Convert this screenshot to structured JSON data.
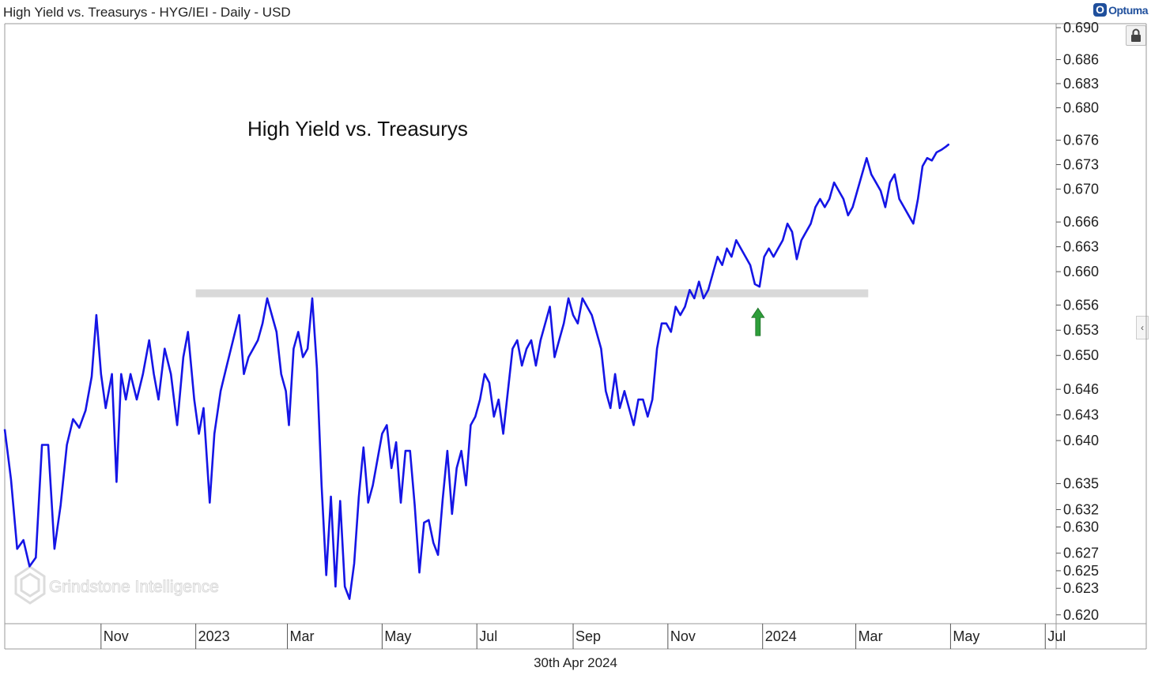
{
  "header": {
    "title": "High Yield vs. Treasurys - HYG/IEI - Daily - USD",
    "brand": "Optuma",
    "brand_icon": "O"
  },
  "footer": {
    "date": "30th Apr 2024"
  },
  "icons": {
    "lock": "lock-icon",
    "collapse": "chevron-left-icon"
  },
  "colors": {
    "series": "#1515e6",
    "band": "#d9d9d9",
    "arrow": "#2e9e3a"
  },
  "chart_data": {
    "type": "line",
    "title": "High Yield vs. Treasurys",
    "watermark": "Grindstone Intelligence",
    "xlabel": "",
    "ylabel": "",
    "scale": "log",
    "ylim": [
      0.619,
      0.6905
    ],
    "xlim": [
      "2022-08-31",
      "2024-07-08"
    ],
    "x_tick_labels": [
      {
        "date": "2022-11-01",
        "label": "Nov"
      },
      {
        "date": "2023-01-01",
        "label": "2023"
      },
      {
        "date": "2023-03-01",
        "label": "Mar"
      },
      {
        "date": "2023-05-01",
        "label": "May"
      },
      {
        "date": "2023-07-01",
        "label": "Jul"
      },
      {
        "date": "2023-09-01",
        "label": "Sep"
      },
      {
        "date": "2023-11-01",
        "label": "Nov"
      },
      {
        "date": "2024-01-01",
        "label": "2024"
      },
      {
        "date": "2024-03-01",
        "label": "Mar"
      },
      {
        "date": "2024-05-01",
        "label": "May"
      },
      {
        "date": "2024-07-01",
        "label": "Jul"
      }
    ],
    "y_ticks": [
      0.69,
      0.686,
      0.683,
      0.68,
      0.676,
      0.673,
      0.67,
      0.666,
      0.663,
      0.66,
      0.656,
      0.653,
      0.65,
      0.646,
      0.643,
      0.64,
      0.635,
      0.632,
      0.63,
      0.627,
      0.625,
      0.623,
      0.62
    ],
    "y_tick_labels": [
      "0.690",
      "0.686",
      "0.683",
      "0.680",
      "0.676",
      "0.673",
      "0.670",
      "0.666",
      "0.663",
      "0.660",
      "0.656",
      "0.653",
      "0.650",
      "0.646",
      "0.643",
      "0.640",
      "0.635",
      "0.632",
      "0.630",
      "0.627",
      "0.625",
      "0.623",
      "0.620"
    ],
    "resistance_band": {
      "level": 0.6574,
      "from": "2023-01-01",
      "to": "2024-03-09"
    },
    "arrow": {
      "date": "2023-12-29",
      "value": 0.6545,
      "direction": "up"
    },
    "series": [
      {
        "color": "#1515e6",
        "points": [
          [
            "2022-08-31",
            0.6413
          ],
          [
            "2022-09-04",
            0.6355
          ],
          [
            "2022-09-08",
            0.6275
          ],
          [
            "2022-09-12",
            0.6285
          ],
          [
            "2022-09-16",
            0.6255
          ],
          [
            "2022-09-20",
            0.6265
          ],
          [
            "2022-09-24",
            0.6395
          ],
          [
            "2022-09-28",
            0.6395
          ],
          [
            "2022-10-02",
            0.6275
          ],
          [
            "2022-10-06",
            0.6325
          ],
          [
            "2022-10-10",
            0.6395
          ],
          [
            "2022-10-14",
            0.6425
          ],
          [
            "2022-10-18",
            0.6415
          ],
          [
            "2022-10-22",
            0.6435
          ],
          [
            "2022-10-26",
            0.6475
          ],
          [
            "2022-10-29",
            0.6548
          ],
          [
            "2022-11-01",
            0.6478
          ],
          [
            "2022-11-04",
            0.6438
          ],
          [
            "2022-11-08",
            0.6478
          ],
          [
            "2022-11-11",
            0.6352
          ],
          [
            "2022-11-14",
            0.6478
          ],
          [
            "2022-11-17",
            0.6448
          ],
          [
            "2022-11-20",
            0.6478
          ],
          [
            "2022-11-24",
            0.6448
          ],
          [
            "2022-11-28",
            0.6478
          ],
          [
            "2022-12-02",
            0.6518
          ],
          [
            "2022-12-05",
            0.6478
          ],
          [
            "2022-12-08",
            0.6448
          ],
          [
            "2022-12-12",
            0.6508
          ],
          [
            "2022-12-16",
            0.6478
          ],
          [
            "2022-12-20",
            0.6418
          ],
          [
            "2022-12-24",
            0.6498
          ],
          [
            "2022-12-27",
            0.6528
          ],
          [
            "2022-12-31",
            0.6448
          ],
          [
            "2023-01-03",
            0.6408
          ],
          [
            "2023-01-06",
            0.6438
          ],
          [
            "2023-01-10",
            0.6328
          ],
          [
            "2023-01-13",
            0.6408
          ],
          [
            "2023-01-17",
            0.6458
          ],
          [
            "2023-01-21",
            0.6488
          ],
          [
            "2023-01-25",
            0.6518
          ],
          [
            "2023-01-29",
            0.6548
          ],
          [
            "2023-02-01",
            0.6478
          ],
          [
            "2023-02-04",
            0.6498
          ],
          [
            "2023-02-07",
            0.6508
          ],
          [
            "2023-02-10",
            0.6518
          ],
          [
            "2023-02-13",
            0.6538
          ],
          [
            "2023-02-16",
            0.6568
          ],
          [
            "2023-02-19",
            0.6548
          ],
          [
            "2023-02-22",
            0.6528
          ],
          [
            "2023-02-25",
            0.6478
          ],
          [
            "2023-02-28",
            0.6458
          ],
          [
            "2023-03-02",
            0.6418
          ],
          [
            "2023-03-05",
            0.6508
          ],
          [
            "2023-03-08",
            0.6528
          ],
          [
            "2023-03-11",
            0.6498
          ],
          [
            "2023-03-14",
            0.6508
          ],
          [
            "2023-03-17",
            0.6568
          ],
          [
            "2023-03-20",
            0.6485
          ],
          [
            "2023-03-23",
            0.6348
          ],
          [
            "2023-03-26",
            0.6245
          ],
          [
            "2023-03-29",
            0.6335
          ],
          [
            "2023-04-01",
            0.6232
          ],
          [
            "2023-04-04",
            0.633
          ],
          [
            "2023-04-07",
            0.6232
          ],
          [
            "2023-04-10",
            0.6218
          ],
          [
            "2023-04-13",
            0.6258
          ],
          [
            "2023-04-16",
            0.6335
          ],
          [
            "2023-04-19",
            0.6392
          ],
          [
            "2023-04-22",
            0.6328
          ],
          [
            "2023-04-25",
            0.6348
          ],
          [
            "2023-04-28",
            0.6378
          ],
          [
            "2023-05-01",
            0.6408
          ],
          [
            "2023-05-04",
            0.6418
          ],
          [
            "2023-05-07",
            0.6368
          ],
          [
            "2023-05-10",
            0.6398
          ],
          [
            "2023-05-13",
            0.6328
          ],
          [
            "2023-05-16",
            0.6388
          ],
          [
            "2023-05-19",
            0.6388
          ],
          [
            "2023-05-22",
            0.6325
          ],
          [
            "2023-05-25",
            0.6248
          ],
          [
            "2023-05-28",
            0.6305
          ],
          [
            "2023-05-31",
            0.6308
          ],
          [
            "2023-06-03",
            0.6282
          ],
          [
            "2023-06-06",
            0.6268
          ],
          [
            "2023-06-09",
            0.6332
          ],
          [
            "2023-06-12",
            0.6388
          ],
          [
            "2023-06-15",
            0.6315
          ],
          [
            "2023-06-18",
            0.6368
          ],
          [
            "2023-06-21",
            0.6388
          ],
          [
            "2023-06-24",
            0.6348
          ],
          [
            "2023-06-27",
            0.6418
          ],
          [
            "2023-06-30",
            0.6428
          ],
          [
            "2023-07-03",
            0.6448
          ],
          [
            "2023-07-06",
            0.6478
          ],
          [
            "2023-07-09",
            0.6468
          ],
          [
            "2023-07-12",
            0.6428
          ],
          [
            "2023-07-15",
            0.6448
          ],
          [
            "2023-07-18",
            0.6408
          ],
          [
            "2023-07-21",
            0.6458
          ],
          [
            "2023-07-24",
            0.6508
          ],
          [
            "2023-07-27",
            0.6518
          ],
          [
            "2023-07-30",
            0.6488
          ],
          [
            "2023-08-02",
            0.6508
          ],
          [
            "2023-08-05",
            0.6518
          ],
          [
            "2023-08-08",
            0.6488
          ],
          [
            "2023-08-11",
            0.6518
          ],
          [
            "2023-08-14",
            0.6538
          ],
          [
            "2023-08-17",
            0.6558
          ],
          [
            "2023-08-20",
            0.6498
          ],
          [
            "2023-08-23",
            0.6518
          ],
          [
            "2023-08-26",
            0.6538
          ],
          [
            "2023-08-29",
            0.6568
          ],
          [
            "2023-09-01",
            0.6548
          ],
          [
            "2023-09-04",
            0.6538
          ],
          [
            "2023-09-07",
            0.6568
          ],
          [
            "2023-09-10",
            0.6558
          ],
          [
            "2023-09-13",
            0.6548
          ],
          [
            "2023-09-16",
            0.6528
          ],
          [
            "2023-09-19",
            0.6508
          ],
          [
            "2023-09-22",
            0.6458
          ],
          [
            "2023-09-25",
            0.6438
          ],
          [
            "2023-09-28",
            0.6478
          ],
          [
            "2023-10-01",
            0.6438
          ],
          [
            "2023-10-04",
            0.6458
          ],
          [
            "2023-10-07",
            0.6438
          ],
          [
            "2023-10-10",
            0.6418
          ],
          [
            "2023-10-13",
            0.6448
          ],
          [
            "2023-10-16",
            0.6448
          ],
          [
            "2023-10-19",
            0.6428
          ],
          [
            "2023-10-22",
            0.6448
          ],
          [
            "2023-10-25",
            0.6508
          ],
          [
            "2023-10-28",
            0.6538
          ],
          [
            "2023-10-31",
            0.6538
          ],
          [
            "2023-11-03",
            0.6528
          ],
          [
            "2023-11-06",
            0.6558
          ],
          [
            "2023-11-09",
            0.6548
          ],
          [
            "2023-11-12",
            0.6558
          ],
          [
            "2023-11-15",
            0.6578
          ],
          [
            "2023-11-18",
            0.6568
          ],
          [
            "2023-11-21",
            0.6588
          ],
          [
            "2023-11-24",
            0.6568
          ],
          [
            "2023-11-27",
            0.6578
          ],
          [
            "2023-11-30",
            0.6598
          ],
          [
            "2023-12-03",
            0.6618
          ],
          [
            "2023-12-06",
            0.6608
          ],
          [
            "2023-12-09",
            0.6628
          ],
          [
            "2023-12-12",
            0.6618
          ],
          [
            "2023-12-15",
            0.6638
          ],
          [
            "2023-12-18",
            0.6628
          ],
          [
            "2023-12-21",
            0.6618
          ],
          [
            "2023-12-24",
            0.6608
          ],
          [
            "2023-12-27",
            0.6585
          ],
          [
            "2023-12-30",
            0.6582
          ],
          [
            "2024-01-02",
            0.6618
          ],
          [
            "2024-01-05",
            0.6628
          ],
          [
            "2024-01-08",
            0.6618
          ],
          [
            "2024-01-11",
            0.6628
          ],
          [
            "2024-01-14",
            0.6638
          ],
          [
            "2024-01-17",
            0.6658
          ],
          [
            "2024-01-20",
            0.6648
          ],
          [
            "2024-01-23",
            0.6615
          ],
          [
            "2024-01-26",
            0.6638
          ],
          [
            "2024-01-29",
            0.6648
          ],
          [
            "2024-02-01",
            0.6658
          ],
          [
            "2024-02-04",
            0.6678
          ],
          [
            "2024-02-07",
            0.6688
          ],
          [
            "2024-02-10",
            0.6678
          ],
          [
            "2024-02-13",
            0.6688
          ],
          [
            "2024-02-16",
            0.6708
          ],
          [
            "2024-02-19",
            0.6698
          ],
          [
            "2024-02-22",
            0.6688
          ],
          [
            "2024-02-25",
            0.6668
          ],
          [
            "2024-02-28",
            0.6678
          ],
          [
            "2024-03-02",
            0.6698
          ],
          [
            "2024-03-05",
            0.6718
          ],
          [
            "2024-03-08",
            0.6738
          ],
          [
            "2024-03-11",
            0.6718
          ],
          [
            "2024-03-14",
            0.6708
          ],
          [
            "2024-03-17",
            0.6698
          ],
          [
            "2024-03-20",
            0.6678
          ],
          [
            "2024-03-23",
            0.6708
          ],
          [
            "2024-03-26",
            0.6718
          ],
          [
            "2024-03-29",
            0.6688
          ],
          [
            "2024-04-01",
            0.6678
          ],
          [
            "2024-04-04",
            0.6668
          ],
          [
            "2024-04-07",
            0.6658
          ],
          [
            "2024-04-10",
            0.6688
          ],
          [
            "2024-04-13",
            0.6728
          ],
          [
            "2024-04-16",
            0.6738
          ],
          [
            "2024-04-19",
            0.6735
          ],
          [
            "2024-04-22",
            0.6745
          ],
          [
            "2024-04-25",
            0.6748
          ],
          [
            "2024-04-28",
            0.6752
          ],
          [
            "2024-04-30",
            0.6755
          ]
        ]
      }
    ]
  }
}
